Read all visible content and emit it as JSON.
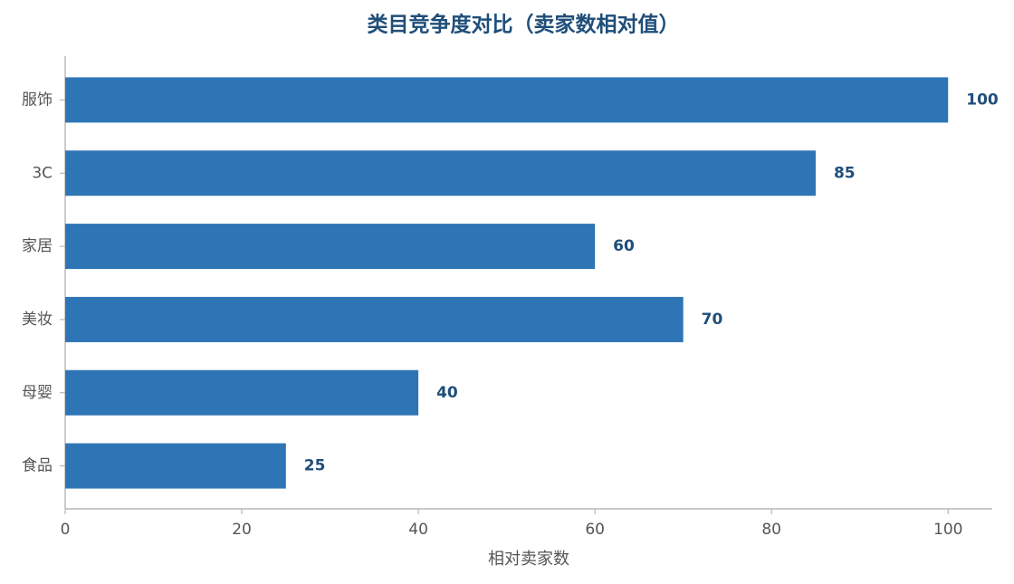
{
  "chart_data": {
    "type": "hbar",
    "title": "类目竞争度对比（卖家数相对值）",
    "categories": [
      "服饰",
      "3C",
      "家居",
      "美妆",
      "母婴",
      "食品"
    ],
    "values": [
      100,
      85,
      60,
      70,
      40,
      25
    ],
    "color": "#2e75b6",
    "x_label": "相对卖家数",
    "xlim": [
      0,
      105
    ],
    "xticks": [
      0,
      20,
      40,
      60,
      80,
      100
    ],
    "grid": false
  }
}
